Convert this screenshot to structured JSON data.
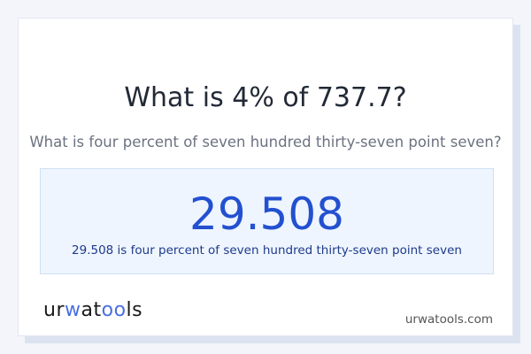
{
  "title": "What is 4% of 737.7?",
  "subtitle": "What is four percent of seven hundred thirty-seven point seven?",
  "result": {
    "value": "29.508",
    "sentence": "29.508 is four percent of seven hundred thirty-seven point seven"
  },
  "logo": {
    "parts": [
      "ur",
      "w",
      "at",
      "oo",
      "ls"
    ]
  },
  "site": "urwatools.com",
  "colors": {
    "accent": "#2350d0",
    "logo_accent": "#4a6fe0",
    "background": "#f4f5fa"
  }
}
